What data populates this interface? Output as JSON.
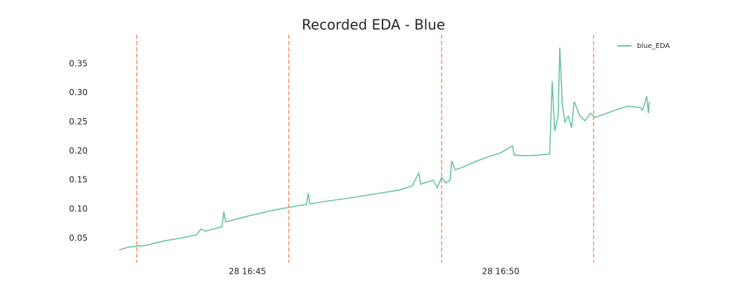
{
  "chart_data": {
    "type": "line",
    "title": "Recorded EDA - Blue",
    "x": [
      "28 16:42:28",
      "28 16:42:40",
      "28 16:43:00",
      "28 16:43:20",
      "28 16:43:40",
      "28 16:44:00",
      "28 16:44:05",
      "28 16:44:10",
      "28 16:44:30",
      "28 16:44:32",
      "28 16:44:34",
      "28 16:45:00",
      "28 16:45:30",
      "28 16:46:00",
      "28 16:46:10",
      "28 16:46:12",
      "28 16:46:14",
      "28 16:46:30",
      "28 16:47:00",
      "28 16:47:30",
      "28 16:48:00",
      "28 16:48:15",
      "28 16:48:23",
      "28 16:48:25",
      "28 16:48:40",
      "28 16:48:45",
      "28 16:48:50",
      "28 16:48:55",
      "28 16:49:00",
      "28 16:49:02",
      "28 16:49:06",
      "28 16:49:15",
      "28 16:49:30",
      "28 16:49:45",
      "28 16:50:00",
      "28 16:50:14",
      "28 16:50:16",
      "28 16:50:30",
      "28 16:50:45",
      "28 16:50:58",
      "28 16:51:01",
      "28 16:51:04",
      "28 16:51:08",
      "28 16:51:10",
      "28 16:51:13",
      "28 16:51:16",
      "28 16:51:20",
      "28 16:51:24",
      "28 16:51:27",
      "28 16:51:34",
      "28 16:51:40",
      "28 16:51:46",
      "28 16:51:52",
      "28 16:52:00",
      "28 16:52:15",
      "28 16:52:30",
      "28 16:52:45",
      "28 16:52:48",
      "28 16:52:53",
      "28 16:52:55",
      "28 16:52:56"
    ],
    "series": [
      {
        "name": "blue_EDA",
        "color": "#66c2a5",
        "values": [
          0.03,
          0.035,
          0.038,
          0.045,
          0.05,
          0.056,
          0.066,
          0.062,
          0.07,
          0.096,
          0.078,
          0.088,
          0.098,
          0.106,
          0.108,
          0.128,
          0.109,
          0.113,
          0.119,
          0.126,
          0.133,
          0.14,
          0.162,
          0.143,
          0.15,
          0.137,
          0.155,
          0.145,
          0.15,
          0.183,
          0.168,
          0.172,
          0.182,
          0.19,
          0.197,
          0.209,
          0.193,
          0.192,
          0.193,
          0.195,
          0.32,
          0.235,
          0.26,
          0.378,
          0.28,
          0.25,
          0.26,
          0.24,
          0.285,
          0.26,
          0.252,
          0.265,
          0.258,
          0.262,
          0.27,
          0.277,
          0.275,
          0.27,
          0.294,
          0.265,
          0.285
        ]
      }
    ],
    "vlines": [
      "28 16:42:49",
      "28 16:45:49",
      "28 16:48:50",
      "28 16:51:50"
    ],
    "vline_color": "#fc8d62",
    "xlim": [
      "28 16:41:54",
      "28 16:53:30"
    ],
    "xticks": [
      "28 16:45",
      "28 16:50"
    ],
    "ylim": [
      0.008,
      0.4
    ],
    "yticks": [
      {
        "value": 0.05,
        "label": "0.05"
      },
      {
        "value": 0.1,
        "label": "0.10"
      },
      {
        "value": 0.15,
        "label": "0.15"
      },
      {
        "value": 0.2,
        "label": "0.20"
      },
      {
        "value": 0.25,
        "label": "0.25"
      },
      {
        "value": 0.3,
        "label": "0.30"
      },
      {
        "value": 0.35,
        "label": "0.35"
      }
    ],
    "legend": "upper right"
  }
}
